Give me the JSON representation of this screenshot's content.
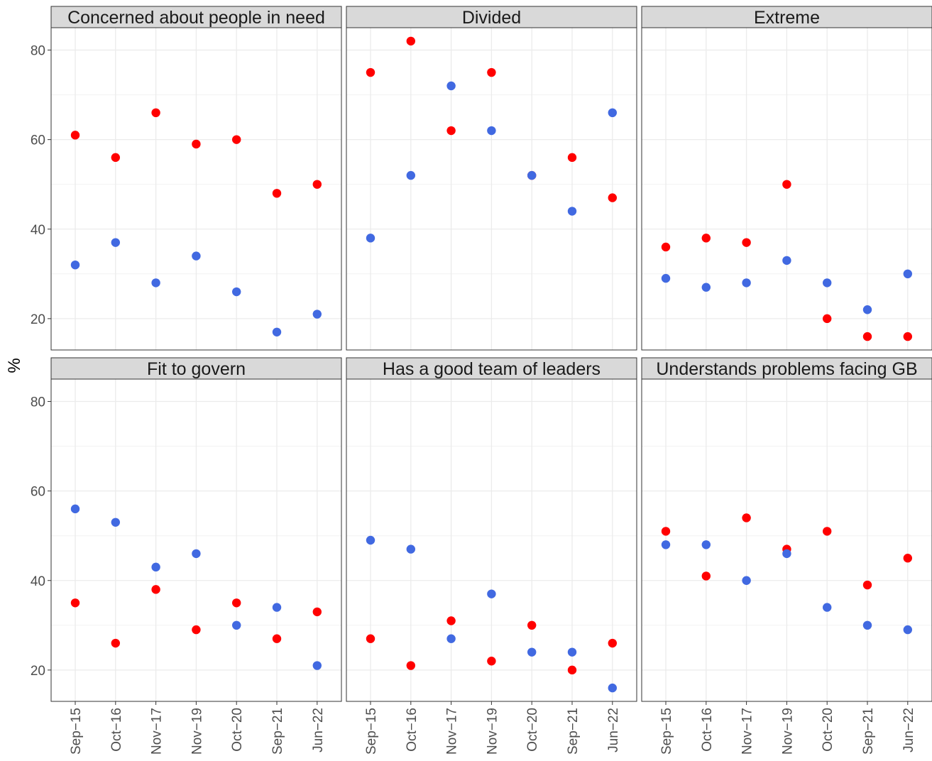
{
  "chart_data": {
    "type": "scatter",
    "ylabel": "%",
    "ylim": [
      13,
      85
    ],
    "yticks": [
      20,
      40,
      60,
      80
    ],
    "categories": [
      "Sep−15",
      "Oct−16",
      "Nov−17",
      "Nov−19",
      "Oct−20",
      "Sep−21",
      "Jun−22"
    ],
    "grid": true,
    "colors": {
      "red_series": "#ff0000",
      "blue_series": "#4169e1"
    },
    "panels": [
      {
        "title": "Concerned about people in need",
        "series": [
          {
            "color": "#ff0000",
            "values": [
              61,
              56,
              66,
              59,
              60,
              48,
              50
            ]
          },
          {
            "color": "#4169e1",
            "values": [
              32,
              37,
              28,
              34,
              26,
              17,
              21
            ]
          }
        ]
      },
      {
        "title": "Divided",
        "series": [
          {
            "color": "#ff0000",
            "values": [
              75,
              82,
              62,
              75,
              52,
              56,
              47
            ]
          },
          {
            "color": "#4169e1",
            "values": [
              38,
              52,
              72,
              62,
              52,
              44,
              66
            ]
          }
        ]
      },
      {
        "title": "Extreme",
        "series": [
          {
            "color": "#ff0000",
            "values": [
              36,
              38,
              37,
              50,
              20,
              16,
              16
            ]
          },
          {
            "color": "#4169e1",
            "values": [
              29,
              27,
              28,
              33,
              28,
              22,
              30
            ]
          }
        ]
      },
      {
        "title": "Fit to govern",
        "series": [
          {
            "color": "#ff0000",
            "values": [
              35,
              26,
              38,
              29,
              35,
              27,
              33
            ]
          },
          {
            "color": "#4169e1",
            "values": [
              56,
              53,
              43,
              46,
              30,
              34,
              21
            ]
          }
        ]
      },
      {
        "title": "Has a good team of leaders",
        "series": [
          {
            "color": "#ff0000",
            "values": [
              27,
              21,
              31,
              22,
              30,
              20,
              26
            ]
          },
          {
            "color": "#4169e1",
            "values": [
              49,
              47,
              27,
              37,
              24,
              24,
              16
            ]
          }
        ]
      },
      {
        "title": "Understands problems facing GB",
        "series": [
          {
            "color": "#ff0000",
            "values": [
              51,
              41,
              54,
              47,
              51,
              39,
              45
            ]
          },
          {
            "color": "#4169e1",
            "values": [
              48,
              48,
              40,
              46,
              34,
              30,
              29
            ]
          }
        ]
      }
    ]
  }
}
